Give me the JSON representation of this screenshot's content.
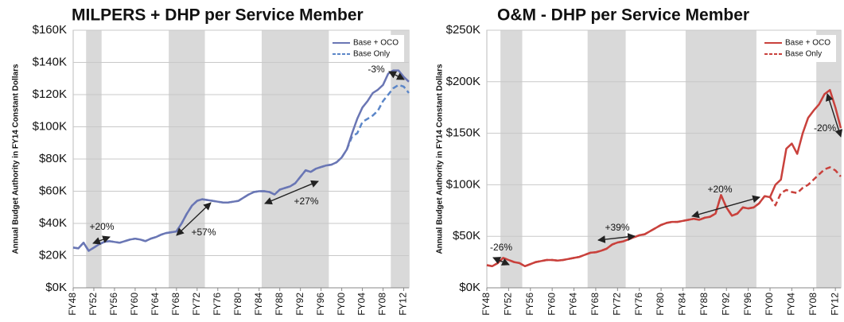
{
  "chart_data": [
    {
      "type": "line",
      "title": "MILPERS + DHP per Service Member",
      "y_label": "Annual Budget Authority in FY14 Constant Dollars",
      "categories": [
        "FY48",
        null,
        null,
        null,
        "FY52",
        null,
        null,
        null,
        "FY56",
        null,
        null,
        null,
        "FY60",
        null,
        null,
        null,
        "FY64",
        null,
        null,
        null,
        "FY68",
        null,
        null,
        null,
        "FY72",
        null,
        null,
        null,
        "FY76",
        null,
        null,
        null,
        "FY80",
        null,
        null,
        null,
        "FY84",
        null,
        null,
        null,
        "FY88",
        null,
        null,
        null,
        "FY92",
        null,
        null,
        null,
        "FY96",
        null,
        null,
        null,
        "FY00",
        null,
        null,
        null,
        "FY04",
        null,
        null,
        null,
        "FY08",
        null,
        null,
        null,
        "FY12",
        null
      ],
      "series": [
        {
          "name": "Base + OCO",
          "color": "#6a76b4",
          "dash": false,
          "values": [
            25000,
            24500,
            28000,
            23000,
            25000,
            27000,
            28500,
            29000,
            28500,
            28000,
            29000,
            30000,
            30500,
            30000,
            29000,
            30500,
            31500,
            33000,
            34000,
            34500,
            35000,
            40000,
            46000,
            51000,
            54000,
            55000,
            54500,
            54000,
            53500,
            53000,
            53000,
            53500,
            54000,
            56000,
            58000,
            59500,
            60000,
            60000,
            59500,
            58000,
            61000,
            62000,
            63000,
            65000,
            69000,
            73000,
            72000,
            74000,
            75000,
            76000,
            76500,
            78000,
            81000,
            86000,
            96000,
            105000,
            112000,
            116000,
            121000,
            123000,
            126000,
            133000,
            135000,
            135000,
            131000,
            128000
          ]
        },
        {
          "name": "Base Only",
          "color": "#5b86c8",
          "dash": true,
          "values": [
            25000,
            24500,
            28000,
            23000,
            25000,
            27000,
            28500,
            29000,
            28500,
            28000,
            29000,
            30000,
            30500,
            30000,
            29000,
            30500,
            31500,
            33000,
            34000,
            34500,
            35000,
            40000,
            46000,
            51000,
            54000,
            55000,
            54500,
            54000,
            53500,
            53000,
            53000,
            53500,
            54000,
            56000,
            58000,
            59500,
            60000,
            60000,
            59500,
            58000,
            61000,
            62000,
            63000,
            65000,
            69000,
            73000,
            72000,
            74000,
            75000,
            76000,
            76500,
            78000,
            81000,
            86000,
            94000,
            96000,
            103000,
            105000,
            107000,
            110000,
            116000,
            120000,
            124000,
            126000,
            125000,
            121000
          ]
        }
      ],
      "ylim": [
        0,
        160000
      ],
      "yticks": [
        {
          "value": 0,
          "label": "$0K"
        },
        {
          "value": 20000,
          "label": "$20K"
        },
        {
          "value": 40000,
          "label": "$40K"
        },
        {
          "value": 60000,
          "label": "$60K"
        },
        {
          "value": 80000,
          "label": "$80K"
        },
        {
          "value": 100000,
          "label": "$100K"
        },
        {
          "value": 120000,
          "label": "$120K"
        },
        {
          "value": 140000,
          "label": "$140K"
        },
        {
          "value": 160000,
          "label": "$160K"
        }
      ],
      "grid": true,
      "legend": "upper right",
      "shaded_periods": [
        [
          3,
          5
        ],
        [
          19,
          25
        ],
        [
          37,
          49
        ],
        [
          62,
          65
        ]
      ],
      "annotations": [
        "+20%",
        "+57%",
        "+27%",
        "-3%"
      ]
    },
    {
      "type": "line",
      "title": "O&M - DHP per Service Member",
      "y_label": "Annual Budget Authority in FY14 Constant Dollars",
      "categories": [
        "FY48",
        null,
        null,
        null,
        "FY52",
        null,
        null,
        null,
        "FY56",
        null,
        null,
        null,
        "FY60",
        null,
        null,
        null,
        "FY64",
        null,
        null,
        null,
        "FY68",
        null,
        null,
        null,
        "FY72",
        null,
        null,
        null,
        "FY76",
        null,
        null,
        null,
        "FY80",
        null,
        null,
        null,
        "FY84",
        null,
        null,
        null,
        "FY88",
        null,
        null,
        null,
        "FY92",
        null,
        null,
        null,
        "FY96",
        null,
        null,
        null,
        "FY00",
        null,
        null,
        null,
        "FY04",
        null,
        null,
        null,
        "FY08",
        null,
        null,
        null,
        "FY12",
        null
      ],
      "series": [
        {
          "name": "Base + OCO",
          "color": "#c9413c",
          "dash": false,
          "values": [
            22000,
            21000,
            24000,
            29000,
            27000,
            25000,
            24000,
            21000,
            23000,
            25000,
            26000,
            27000,
            27000,
            26500,
            27000,
            28000,
            29000,
            30000,
            32000,
            34000,
            34500,
            36000,
            38000,
            42000,
            44000,
            45000,
            47000,
            49000,
            51000,
            52000,
            55000,
            58000,
            61000,
            63000,
            64000,
            64000,
            65000,
            66000,
            67000,
            66000,
            68000,
            69000,
            72000,
            90000,
            78000,
            70000,
            72000,
            78000,
            77000,
            78000,
            82000,
            89000,
            88000,
            100000,
            105000,
            135000,
            140000,
            130000,
            150000,
            165000,
            172000,
            178000,
            188000,
            192000,
            175000,
            155000
          ]
        },
        {
          "name": "Base Only",
          "color": "#c9413c",
          "dash": true,
          "values": [
            22000,
            21000,
            24000,
            29000,
            27000,
            25000,
            24000,
            21000,
            23000,
            25000,
            26000,
            27000,
            27000,
            26500,
            27000,
            28000,
            29000,
            30000,
            32000,
            34000,
            34500,
            36000,
            38000,
            42000,
            44000,
            45000,
            47000,
            49000,
            51000,
            52000,
            55000,
            58000,
            61000,
            63000,
            64000,
            64000,
            65000,
            66000,
            67000,
            66000,
            68000,
            69000,
            72000,
            90000,
            78000,
            70000,
            72000,
            78000,
            77000,
            78000,
            82000,
            89000,
            88000,
            80000,
            92000,
            95000,
            93000,
            92000,
            97000,
            100000,
            105000,
            110000,
            115000,
            117000,
            114000,
            108000
          ]
        }
      ],
      "ylim": [
        0,
        250000
      ],
      "yticks": [
        {
          "value": 0,
          "label": "$0K"
        },
        {
          "value": 50000,
          "label": "$50K"
        },
        {
          "value": 100000,
          "label": "$100K"
        },
        {
          "value": 150000,
          "label": "$150K"
        },
        {
          "value": 200000,
          "label": "$200K"
        },
        {
          "value": 250000,
          "label": "$250K"
        }
      ],
      "grid": true,
      "legend": "upper right",
      "shaded_periods": [
        [
          3,
          6
        ],
        [
          19,
          25
        ],
        [
          37,
          49
        ],
        [
          61,
          65
        ]
      ],
      "annotations": [
        "-26%",
        "+39%",
        "+20%",
        "-20%"
      ]
    }
  ]
}
